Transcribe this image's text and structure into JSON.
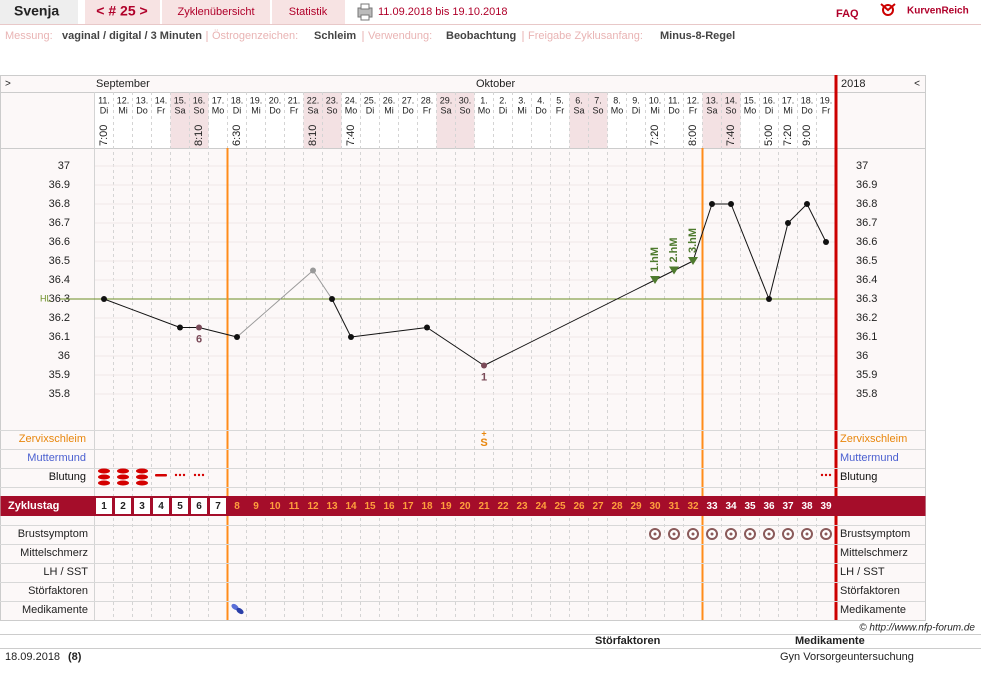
{
  "header": {
    "name": "Svenja",
    "cycle_nav": "< # 25 >",
    "tabs": [
      "Zyklenübersicht",
      "Statistik"
    ],
    "period": "11.09.2018 bis 19.10.2018",
    "faq": "FAQ",
    "brand": "KurvenReich"
  },
  "settings": [
    {
      "label": "Messung:",
      "value": "vaginal / digital / 3 Minuten"
    },
    {
      "label": "Östrogenzeichen:",
      "value": "Schleim"
    },
    {
      "label": "Verwendung:",
      "value": "Beobachtung"
    },
    {
      "label": "Freigabe Zyklusanfang:",
      "value": "Minus-8-Regel"
    }
  ],
  "chart_data": {
    "type": "line",
    "nav_left": ">",
    "nav_right": "<",
    "year": "2018",
    "months": [
      {
        "name": "September",
        "day": 1
      },
      {
        "name": "Oktober",
        "day": 21
      }
    ],
    "days": [
      {
        "date": "11.",
        "weekday": "Di",
        "time": "7:00"
      },
      {
        "date": "12.",
        "weekday": "Mi",
        "time": null
      },
      {
        "date": "13.",
        "weekday": "Do",
        "time": null
      },
      {
        "date": "14.",
        "weekday": "Fr",
        "time": null
      },
      {
        "date": "15.",
        "weekday": "Sa",
        "time": null,
        "weekend": true
      },
      {
        "date": "16.",
        "weekday": "So",
        "time": "8:10",
        "weekend": true
      },
      {
        "date": "17.",
        "weekday": "Mo",
        "time": null
      },
      {
        "date": "18.",
        "weekday": "Di",
        "time": "6:30"
      },
      {
        "date": "19.",
        "weekday": "Mi",
        "time": null
      },
      {
        "date": "20.",
        "weekday": "Do",
        "time": null
      },
      {
        "date": "21.",
        "weekday": "Fr",
        "time": null
      },
      {
        "date": "22.",
        "weekday": "Sa",
        "time": "8:10",
        "weekend": true
      },
      {
        "date": "23.",
        "weekday": "So",
        "time": null,
        "weekend": true
      },
      {
        "date": "24.",
        "weekday": "Mo",
        "time": "7:40"
      },
      {
        "date": "25.",
        "weekday": "Di",
        "time": null
      },
      {
        "date": "26.",
        "weekday": "Mi",
        "time": null
      },
      {
        "date": "27.",
        "weekday": "Do",
        "time": null
      },
      {
        "date": "28.",
        "weekday": "Fr",
        "time": null
      },
      {
        "date": "29.",
        "weekday": "Sa",
        "time": null,
        "weekend": true
      },
      {
        "date": "30.",
        "weekday": "So",
        "time": null,
        "weekend": true
      },
      {
        "date": "1.",
        "weekday": "Mo",
        "time": null
      },
      {
        "date": "2.",
        "weekday": "Di",
        "time": null
      },
      {
        "date": "3.",
        "weekday": "Mi",
        "time": null
      },
      {
        "date": "4.",
        "weekday": "Do",
        "time": null
      },
      {
        "date": "5.",
        "weekday": "Fr",
        "time": null
      },
      {
        "date": "6.",
        "weekday": "Sa",
        "time": null,
        "weekend": true
      },
      {
        "date": "7.",
        "weekday": "So",
        "time": null,
        "weekend": true
      },
      {
        "date": "8.",
        "weekday": "Mo",
        "time": null
      },
      {
        "date": "9.",
        "weekday": "Di",
        "time": null
      },
      {
        "date": "10.",
        "weekday": "Mi",
        "time": "7:20"
      },
      {
        "date": "11.",
        "weekday": "Do",
        "time": null
      },
      {
        "date": "12.",
        "weekday": "Fr",
        "time": "8:00"
      },
      {
        "date": "13.",
        "weekday": "Sa",
        "time": null,
        "weekend": true
      },
      {
        "date": "14.",
        "weekday": "So",
        "time": "7:40",
        "weekend": true
      },
      {
        "date": "15.",
        "weekday": "Mo",
        "time": null
      },
      {
        "date": "16.",
        "weekday": "Di",
        "time": "5:00"
      },
      {
        "date": "17.",
        "weekday": "Mi",
        "time": "7:20"
      },
      {
        "date": "18.",
        "weekday": "Do",
        "time": "9:00"
      },
      {
        "date": "19.",
        "weekday": "Fr",
        "time": null
      }
    ],
    "x": [
      1,
      5,
      6,
      8,
      12,
      13,
      14,
      18,
      21,
      30,
      31,
      32,
      33,
      34,
      36,
      37,
      38,
      39
    ],
    "values": [
      36.3,
      36.15,
      36.15,
      36.1,
      36.45,
      36.3,
      36.1,
      36.15,
      35.95,
      36.4,
      36.45,
      36.5,
      36.8,
      36.8,
      36.3,
      36.7,
      36.8,
      36.6
    ],
    "excluded": [
      12
    ],
    "line_color": "#111111",
    "excluded_color": "#999999",
    "annotations": [
      {
        "x": 6,
        "text": "6",
        "position": "below",
        "color": "#7a4a58"
      },
      {
        "x": 21,
        "text": "1",
        "position": "below",
        "color": "#7a4a58"
      },
      {
        "x": 30,
        "text": "1.hM",
        "position": "above",
        "color": "#4e7a2e"
      },
      {
        "x": 31,
        "text": "2.hM",
        "position": "above",
        "color": "#4e7a2e"
      },
      {
        "x": 32,
        "text": "3.hM",
        "position": "above",
        "color": "#4e7a2e"
      }
    ],
    "ylim": [
      35.8,
      37
    ],
    "yticks": [
      35.8,
      35.9,
      36,
      36.1,
      36.2,
      36.3,
      36.4,
      36.5,
      36.6,
      36.7,
      36.8,
      36.9,
      37
    ],
    "cover_line": {
      "label": "HL",
      "value": 36.3,
      "color": "#6b8e23"
    },
    "phase_lines": [
      7.5,
      32.5
    ],
    "phase_line_color": "#ff8c1a",
    "end_line_color": "#cc0000",
    "upper_rows": [
      {
        "label": "Zervixschleim",
        "color": "#e8860c"
      },
      {
        "label": "Muttermund",
        "color": "#4a5fd0"
      },
      {
        "label": "Blutung",
        "color": "#111111"
      }
    ],
    "cervix": [
      {
        "day": 21,
        "symbol": "S",
        "mark": "+"
      }
    ],
    "bleeding": [
      {
        "day": 1,
        "level": "heavy"
      },
      {
        "day": 2,
        "level": "heavy"
      },
      {
        "day": 3,
        "level": "heavy"
      },
      {
        "day": 4,
        "level": "light"
      },
      {
        "day": 5,
        "level": "spotting"
      },
      {
        "day": 6,
        "level": "spotting"
      },
      {
        "day": 39,
        "level": "spotting"
      }
    ],
    "cycle_label": "Zyklustag",
    "cycle_days": [
      1,
      2,
      3,
      4,
      5,
      6,
      7,
      8,
      9,
      10,
      11,
      12,
      13,
      14,
      15,
      16,
      17,
      18,
      19,
      20,
      21,
      22,
      23,
      24,
      25,
      26,
      27,
      28,
      29,
      30,
      31,
      32,
      33,
      34,
      35,
      36,
      37,
      38,
      39
    ],
    "lower_rows": [
      "Brustsymptom",
      "Mittelschmerz",
      "LH / SST",
      "Störfaktoren",
      "Medikamente"
    ],
    "breast_symptom_days": [
      30,
      31,
      32,
      33,
      34,
      35,
      36,
      37,
      38,
      39
    ],
    "medication_days": [
      8
    ]
  },
  "footer": {
    "copyright": "© http://www.nfp-forum.de",
    "columns": [
      "Störfaktoren",
      "Medikamente"
    ],
    "entries": [
      {
        "date": "18.09.2018",
        "day": "(8)",
        "medication": "Gyn Vorsorgeuntersuchung"
      }
    ]
  }
}
